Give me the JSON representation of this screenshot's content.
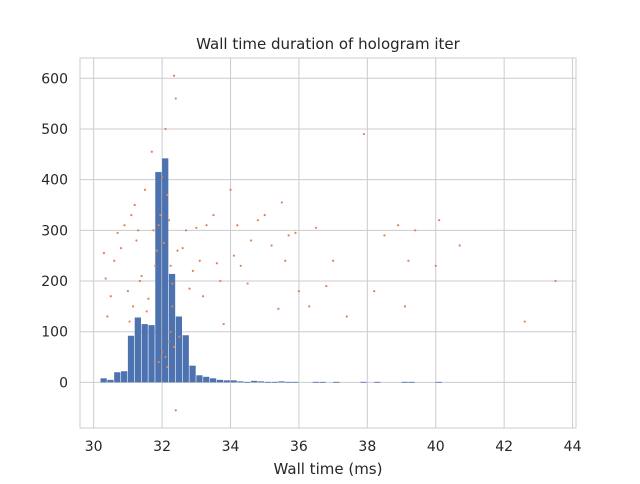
{
  "chart_data": {
    "title": "Wall time duration of hologram iter",
    "type": "bar",
    "overlay_type": "scatter",
    "xlabel": "Wall time (ms)",
    "ylabel": "",
    "xlim": [
      29.6,
      44.1
    ],
    "ylim": [
      -90,
      640
    ],
    "xticks": [
      30,
      32,
      34,
      36,
      38,
      40,
      42,
      44
    ],
    "yticks": [
      0,
      100,
      200,
      300,
      400,
      500,
      600
    ],
    "grid": true,
    "legend": "none",
    "colors": {
      "bar": "#4c72b0",
      "scatter": "#dd8452",
      "grid": "#cccccc",
      "background": "#ffffff"
    },
    "histogram": {
      "bin_width": 0.2,
      "bins_start": [
        30.2,
        30.4,
        30.6,
        30.8,
        31.0,
        31.2,
        31.4,
        31.6,
        31.8,
        32.0,
        32.2,
        32.4,
        32.6,
        32.8,
        33.0,
        33.2,
        33.4,
        33.6,
        33.8,
        34.0,
        34.2,
        34.4,
        34.6,
        34.8,
        35.0,
        35.2,
        35.4,
        35.6,
        35.8,
        36.0,
        36.2,
        36.4,
        36.6,
        36.8,
        37.0,
        37.2,
        37.4,
        37.6,
        37.8,
        38.0,
        38.2,
        38.4,
        38.6,
        38.8,
        39.0,
        39.2,
        39.4,
        39.6,
        39.8,
        40.0,
        40.2,
        40.4,
        40.6,
        40.8,
        41.0,
        41.2,
        41.4,
        41.6,
        41.8,
        42.0,
        42.2,
        42.4,
        42.6,
        42.8,
        43.0,
        43.2,
        43.4
      ],
      "values": [
        8,
        5,
        20,
        22,
        92,
        128,
        115,
        113,
        415,
        442,
        214,
        130,
        93,
        33,
        14,
        11,
        8,
        5,
        4,
        4,
        2,
        1,
        3,
        2,
        1,
        1,
        2,
        1,
        1,
        0,
        0,
        1,
        1,
        0,
        1,
        0,
        0,
        0,
        1,
        0,
        1,
        0,
        0,
        0,
        1,
        1,
        0,
        0,
        0,
        1,
        0,
        0,
        0,
        0,
        0,
        0,
        0,
        0,
        0,
        0,
        0,
        0,
        0,
        0,
        0,
        0,
        0
      ]
    },
    "scatter": {
      "x": [
        30.3,
        30.35,
        30.4,
        30.5,
        30.6,
        30.7,
        30.8,
        30.9,
        31.0,
        31.05,
        31.1,
        31.15,
        31.2,
        31.25,
        31.3,
        31.35,
        31.4,
        31.5,
        31.55,
        31.6,
        31.7,
        31.75,
        31.8,
        31.85,
        31.9,
        31.95,
        32.0,
        32.05,
        32.1,
        32.15,
        32.2,
        32.25,
        32.3,
        32.35,
        32.4,
        32.45,
        32.5,
        32.6,
        32.7,
        32.8,
        32.9,
        33.0,
        33.1,
        33.2,
        33.3,
        33.5,
        33.6,
        33.7,
        33.8,
        34.0,
        34.1,
        34.2,
        34.3,
        34.5,
        34.6,
        34.8,
        35.0,
        35.2,
        35.4,
        35.5,
        35.6,
        35.7,
        35.9,
        36.0,
        36.3,
        36.5,
        36.8,
        37.0,
        37.4,
        37.9,
        38.2,
        38.5,
        38.9,
        39.1,
        39.2,
        39.4,
        40.0,
        40.1,
        40.7,
        42.6,
        43.5,
        32.4,
        32.3,
        32.2,
        32.1,
        31.9,
        32.0,
        32.25,
        32.35,
        32.15
      ],
      "y": [
        255,
        205,
        130,
        170,
        240,
        295,
        265,
        310,
        180,
        120,
        330,
        150,
        350,
        280,
        300,
        200,
        210,
        380,
        140,
        165,
        455,
        300,
        230,
        260,
        310,
        330,
        405,
        275,
        500,
        370,
        320,
        230,
        195,
        605,
        560,
        260,
        90,
        265,
        300,
        185,
        220,
        305,
        240,
        170,
        310,
        330,
        235,
        200,
        115,
        380,
        250,
        310,
        230,
        195,
        280,
        320,
        330,
        270,
        145,
        355,
        240,
        290,
        295,
        180,
        150,
        305,
        190,
        240,
        130,
        490,
        180,
        290,
        310,
        150,
        240,
        300,
        230,
        320,
        270,
        120,
        200,
        -55,
        150,
        80,
        50,
        40,
        60,
        100,
        70,
        30
      ]
    }
  }
}
